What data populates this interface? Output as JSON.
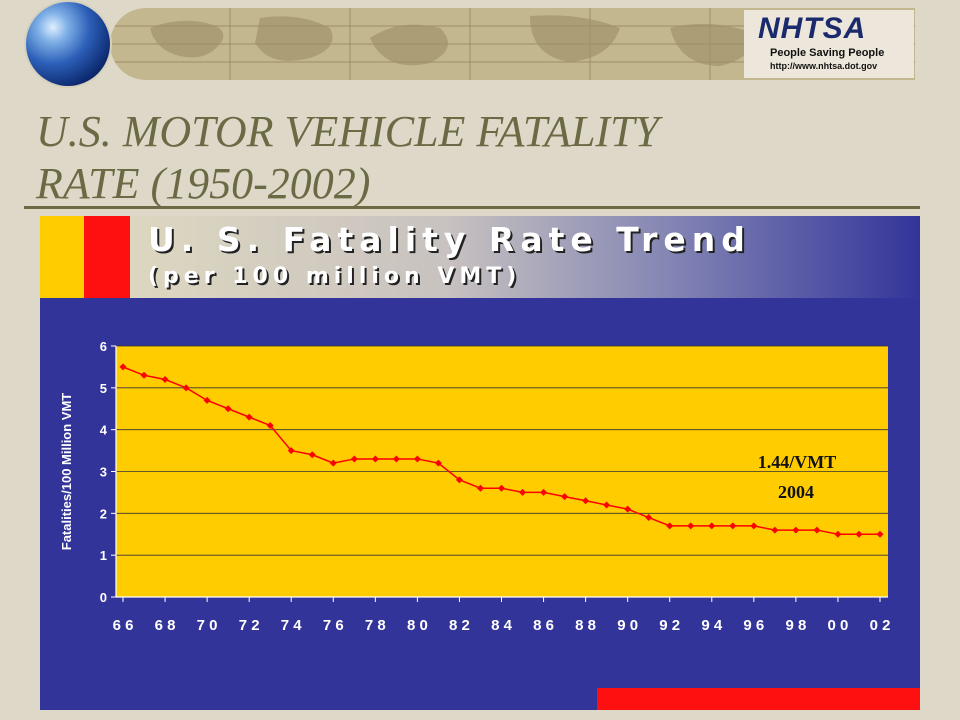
{
  "slide": {
    "title_line1": "U.S. MOTOR VEHICLE FATALITY",
    "title_line2": "RATE (1950-2002)"
  },
  "header": {
    "logo_text": "NHTSA",
    "tagline": "People Saving People",
    "url": "http://www.nhtsa.dot.gov"
  },
  "chart_header": {
    "title": "U. S. Fatality Rate Trend",
    "subtitle": "(per 100 million VMT)"
  },
  "colors": {
    "plot_background": "#ffcc00",
    "panel": "#33349a",
    "series_line": "#ff0000",
    "accent_red": "#ff1010"
  },
  "chart_data": {
    "type": "line",
    "title": "",
    "xlabel": "",
    "ylabel": "Fatalities/100 Million VMT",
    "ylim": [
      0,
      6
    ],
    "yticks": [
      "0",
      "1",
      "2",
      "3",
      "4",
      "5",
      "6"
    ],
    "xticks": [
      "6 6",
      "6 8",
      "7 0",
      "7 2",
      "7 4",
      "7 6",
      "7 8",
      "8 0",
      "8 2",
      "8 4",
      "8 6",
      "8 8",
      "9 0",
      "9 2",
      "9 4",
      "9 6",
      "9 8",
      "0 0",
      "0 2"
    ],
    "grid": "horizontal",
    "x": [
      1966,
      1967,
      1968,
      1969,
      1970,
      1971,
      1972,
      1973,
      1974,
      1975,
      1976,
      1977,
      1978,
      1979,
      1980,
      1981,
      1982,
      1983,
      1984,
      1985,
      1986,
      1987,
      1988,
      1989,
      1990,
      1991,
      1992,
      1993,
      1994,
      1995,
      1996,
      1997,
      1998,
      1999,
      2000,
      2001,
      2002
    ],
    "series": [
      {
        "values": [
          5.5,
          5.3,
          5.2,
          5.0,
          4.7,
          4.5,
          4.3,
          4.1,
          3.5,
          3.4,
          3.2,
          3.3,
          3.3,
          3.3,
          3.3,
          3.2,
          2.8,
          2.6,
          2.6,
          2.5,
          2.5,
          2.4,
          2.3,
          2.2,
          2.1,
          1.9,
          1.7,
          1.7,
          1.7,
          1.7,
          1.7,
          1.6,
          1.6,
          1.6,
          1.5,
          1.5,
          1.5
        ]
      }
    ],
    "annotations": [
      "1.44/VMT",
      "2004"
    ]
  }
}
